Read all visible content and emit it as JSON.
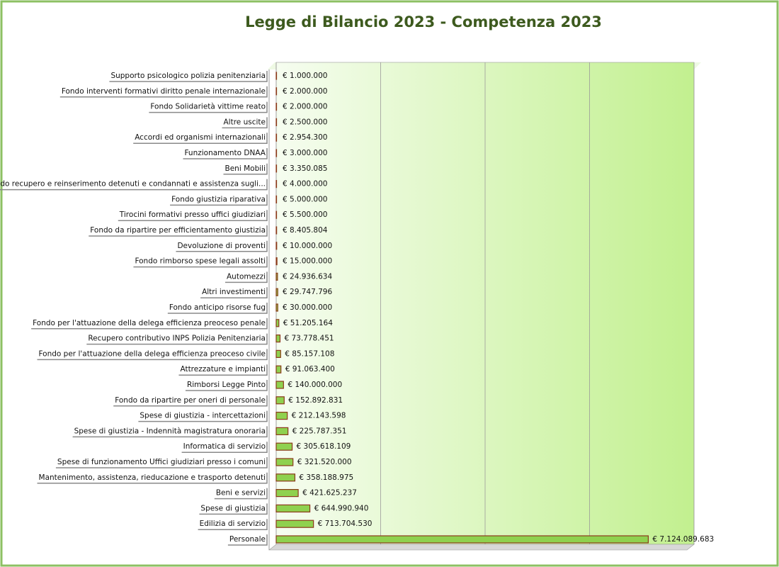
{
  "chart_data": {
    "type": "hbar",
    "title": "Legge di Bilancio 2023 - Competenza 2023",
    "categories": [
      "Supporto psicologico polizia penitenziaria",
      "Fondo interventi formativi diritto penale internazionale",
      "Fondo Solidarietà vittime reato",
      "Altre uscite",
      "Accordi ed organismi internazionali",
      "Funzionamento DNAA",
      "Beni Mobili",
      "Fondo recupero e reinserimento detenuti e condannati e assistenza sugli...",
      "Fondo giustizia riparativa",
      "Tirocini formativi presso uffici giudiziari",
      "Fondo da ripartire per efficientamento giustizia",
      "Devoluzione di proventi",
      "Fondo rimborso spese legali assolti",
      "Automezzi",
      "Altri investimenti",
      "Fondo anticipo risorse fug",
      "Fondo per l'attuazione della delega efficienza preoceso penale",
      "Recupero contributivo INPS Polizia Penitenziaria",
      "Fondo per l'attuazione della delega efficienza preoceso civile",
      "Attrezzature e impianti",
      "Rimborsi Legge Pinto",
      "Fondo da ripartire per oneri di personale",
      "Spese di giustizia - intercettazioni",
      "Spese di giustizia - Indennità magistratura onoraria",
      "Informatica di servizio",
      "Spese di funzionamento Uffici giudiziari presso i comuni",
      "Mantenimento, assistenza, rieducazione e trasporto detenuti",
      "Beni e servizi",
      "Spese di giustizia",
      "Edilizia di servizio",
      "Personale"
    ],
    "values": [
      1000000,
      2000000,
      2000000,
      2500000,
      2954300,
      3000000,
      3350085,
      4000000,
      5000000,
      5500000,
      8405804,
      10000000,
      15000000,
      24936634,
      29747796,
      30000000,
      51205164,
      73778451,
      85157108,
      91063400,
      140000000,
      152892831,
      212143598,
      225787351,
      305618109,
      321520000,
      358188975,
      421625237,
      644990940,
      713704530,
      7124089683
    ],
    "value_labels": [
      "€ 1.000.000",
      "€ 2.000.000",
      "€ 2.000.000",
      "€ 2.500.000",
      "€ 2.954.300",
      "€ 3.000.000",
      "€ 3.350.085",
      "€ 4.000.000",
      "€ 5.000.000",
      "€ 5.500.000",
      "€ 8.405.804",
      "€ 10.000.000",
      "€ 15.000.000",
      "€ 24.936.634",
      "€ 29.747.796",
      "€ 30.000.000",
      "€ 51.205.164",
      "€ 73.778.451",
      "€ 85.157.108",
      "€ 91.063.400",
      "€ 140.000.000",
      "€ 152.892.831",
      "€ 212.143.598",
      "€ 225.787.351",
      "€ 305.618.109",
      "€ 321.520.000",
      "€ 358.188.975",
      "€ 421.625.237",
      "€ 644.990.940",
      "€ 713.704.530",
      "€ 7.124.089.683"
    ],
    "color": "#8fd14f",
    "xlim": [
      0,
      8000000000
    ],
    "xticks": [
      0,
      2000000000,
      4000000000,
      6000000000,
      8000000000
    ],
    "grid": true
  }
}
